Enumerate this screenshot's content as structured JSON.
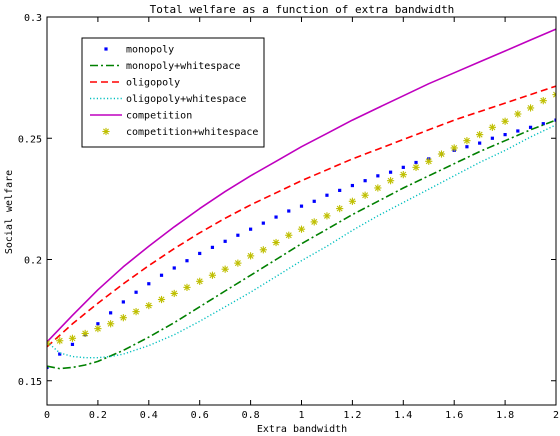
{
  "chart_data": {
    "type": "line",
    "title": "Total welfare as a function of extra bandwidth",
    "xlabel": "Extra bandwidth",
    "ylabel": "Social welfare",
    "xlim": [
      0,
      2
    ],
    "ylim": [
      0.14,
      0.3
    ],
    "xticks": [
      0,
      0.2,
      0.4,
      0.6,
      0.8,
      1,
      1.2,
      1.4,
      1.6,
      1.8,
      2
    ],
    "xtick_labels": [
      "0",
      "0.2",
      "0.4",
      "0.6",
      "0.8",
      "1",
      "1.2",
      "1.4",
      "1.6",
      "1.8",
      "2"
    ],
    "yticks": [
      0.15,
      0.2,
      0.25,
      0.3
    ],
    "ytick_labels": [
      "0.15",
      "0.2",
      "0.25",
      "0.3"
    ],
    "grid": false,
    "legend_position": "top-left",
    "series": [
      {
        "name": "monopoly",
        "style": "dotted-markers",
        "color": "#0000ff",
        "x": [
          0,
          0.05,
          0.1,
          0.15,
          0.2,
          0.25,
          0.3,
          0.35,
          0.4,
          0.45,
          0.5,
          0.55,
          0.6,
          0.65,
          0.7,
          0.75,
          0.8,
          0.85,
          0.9,
          0.95,
          1,
          1.05,
          1.1,
          1.15,
          1.2,
          1.25,
          1.3,
          1.35,
          1.4,
          1.45,
          1.5,
          1.55,
          1.6,
          1.65,
          1.7,
          1.75,
          1.8,
          1.85,
          1.9,
          1.95,
          2
        ],
        "y": [
          0.1555,
          0.161,
          0.165,
          0.169,
          0.1735,
          0.178,
          0.1825,
          0.1865,
          0.19,
          0.1935,
          0.1965,
          0.1995,
          0.2025,
          0.205,
          0.2075,
          0.21,
          0.2125,
          0.215,
          0.2175,
          0.22,
          0.222,
          0.224,
          0.2265,
          0.2285,
          0.2305,
          0.2325,
          0.2345,
          0.236,
          0.238,
          0.24,
          0.2415,
          0.2435,
          0.245,
          0.2465,
          0.248,
          0.25,
          0.2515,
          0.253,
          0.2545,
          0.256,
          0.2575
        ]
      },
      {
        "name": "monopoly+whitespace",
        "style": "dash-dot",
        "color": "#008000",
        "x": [
          0,
          0.05,
          0.1,
          0.15,
          0.2,
          0.3,
          0.4,
          0.5,
          0.6,
          0.7,
          0.8,
          0.9,
          1.0,
          1.1,
          1.2,
          1.3,
          1.4,
          1.5,
          1.6,
          1.7,
          1.8,
          1.9,
          2.0
        ],
        "y": [
          0.156,
          0.155,
          0.1555,
          0.1565,
          0.158,
          0.1625,
          0.168,
          0.174,
          0.1805,
          0.187,
          0.1935,
          0.2,
          0.2065,
          0.2125,
          0.2185,
          0.224,
          0.2295,
          0.2345,
          0.2395,
          0.2445,
          0.249,
          0.2535,
          0.2575
        ]
      },
      {
        "name": "oligopoly",
        "style": "dashed",
        "color": "#ff0000",
        "x": [
          0,
          0.1,
          0.2,
          0.3,
          0.4,
          0.5,
          0.6,
          0.7,
          0.8,
          0.9,
          1.0,
          1.1,
          1.2,
          1.3,
          1.4,
          1.5,
          1.6,
          1.7,
          1.8,
          1.9,
          2.0
        ],
        "y": [
          0.164,
          0.1735,
          0.182,
          0.19,
          0.1975,
          0.2045,
          0.211,
          0.217,
          0.2225,
          0.2275,
          0.2325,
          0.237,
          0.2415,
          0.2455,
          0.2495,
          0.2535,
          0.2575,
          0.261,
          0.2645,
          0.268,
          0.2715
        ]
      },
      {
        "name": "oligopoly+whitespace",
        "style": "dotted",
        "color": "#00bfbf",
        "x": [
          0,
          0.05,
          0.1,
          0.15,
          0.2,
          0.25,
          0.3,
          0.4,
          0.5,
          0.6,
          0.7,
          0.8,
          0.9,
          1.0,
          1.1,
          1.2,
          1.3,
          1.4,
          1.5,
          1.6,
          1.7,
          1.8,
          1.9,
          2.0
        ],
        "y": [
          0.166,
          0.1615,
          0.16,
          0.1595,
          0.1595,
          0.16,
          0.161,
          0.1645,
          0.169,
          0.1745,
          0.1805,
          0.1865,
          0.193,
          0.1995,
          0.2055,
          0.212,
          0.218,
          0.2235,
          0.229,
          0.2345,
          0.24,
          0.245,
          0.2505,
          0.2555
        ]
      },
      {
        "name": "competition",
        "style": "solid",
        "color": "#bf00bf",
        "x": [
          0,
          0.1,
          0.2,
          0.3,
          0.4,
          0.5,
          0.6,
          0.7,
          0.8,
          0.9,
          1.0,
          1.1,
          1.2,
          1.3,
          1.4,
          1.5,
          1.6,
          1.7,
          1.8,
          1.9,
          2.0
        ],
        "y": [
          0.166,
          0.177,
          0.1875,
          0.197,
          0.2055,
          0.2135,
          0.221,
          0.228,
          0.2345,
          0.2405,
          0.2465,
          0.252,
          0.2575,
          0.2625,
          0.2675,
          0.2725,
          0.277,
          0.2815,
          0.286,
          0.2905,
          0.295
        ]
      },
      {
        "name": "competition+whitespace",
        "style": "star-markers",
        "color": "#bfbf00",
        "x": [
          0,
          0.05,
          0.1,
          0.15,
          0.2,
          0.25,
          0.3,
          0.35,
          0.4,
          0.45,
          0.5,
          0.55,
          0.6,
          0.65,
          0.7,
          0.75,
          0.8,
          0.85,
          0.9,
          0.95,
          1,
          1.05,
          1.1,
          1.15,
          1.2,
          1.25,
          1.3,
          1.35,
          1.4,
          1.45,
          1.5,
          1.55,
          1.6,
          1.65,
          1.7,
          1.75,
          1.8,
          1.85,
          1.9,
          1.95,
          2
        ],
        "y": [
          0.1655,
          0.1665,
          0.1675,
          0.1695,
          0.1715,
          0.1735,
          0.176,
          0.1785,
          0.181,
          0.1835,
          0.186,
          0.1885,
          0.191,
          0.1935,
          0.196,
          0.1985,
          0.2015,
          0.204,
          0.207,
          0.21,
          0.2125,
          0.2155,
          0.218,
          0.221,
          0.224,
          0.2265,
          0.2295,
          0.2325,
          0.235,
          0.238,
          0.2405,
          0.2435,
          0.246,
          0.249,
          0.2515,
          0.2545,
          0.257,
          0.26,
          0.2625,
          0.2655,
          0.268
        ]
      }
    ]
  }
}
